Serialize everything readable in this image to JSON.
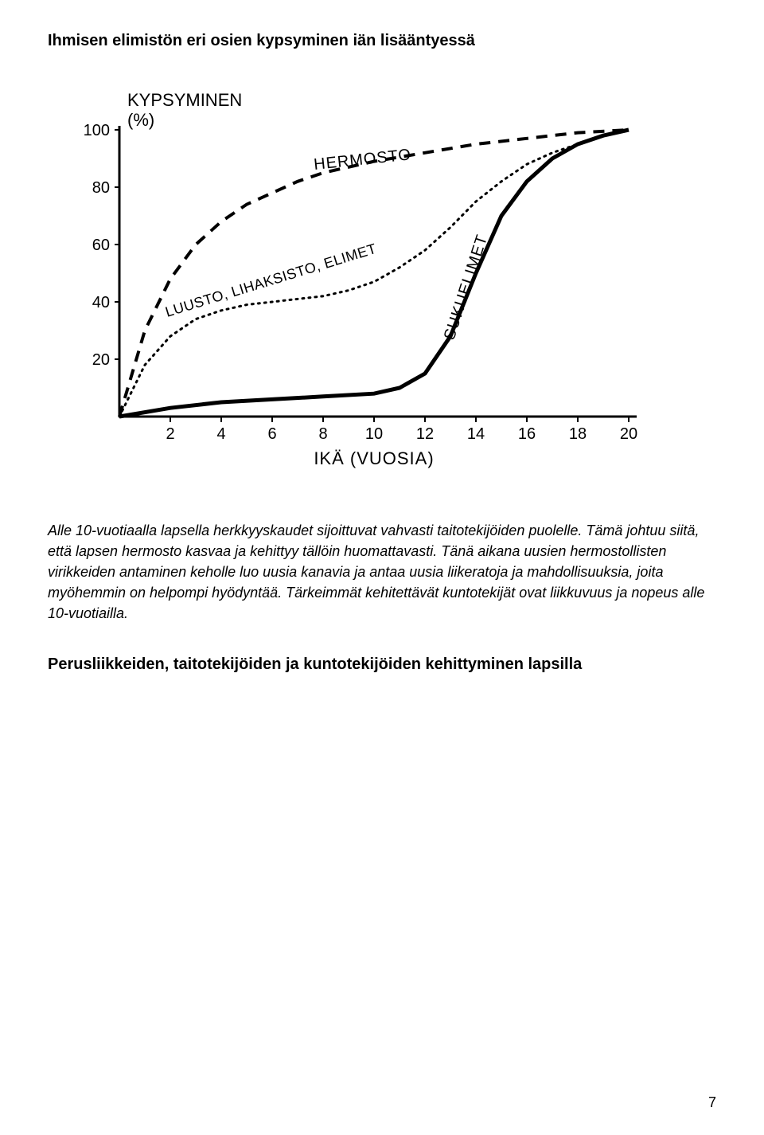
{
  "title": "Ihmisen elimistön eri osien kypsyminen iän lisääntyessä",
  "paragraph": "Alle 10-vuotiaalla lapsella herkkyyskaudet sijoittuvat vahvasti taitotekijöiden puolelle. Tämä johtuu siitä, että lapsen hermosto kasvaa ja kehittyy tällöin huomattavasti. Tänä aikana uusien hermostollisten virikkeiden antaminen keholle luo uusia kanavia ja antaa uusia liikeratoja ja mahdollisuuksia, joita myöhemmin on helpompi hyödyntää. Tärkeimmät kehitettävät kuntotekijät ovat liikkuvuus ja nopeus alle 10-vuotiailla.",
  "heading2": "Perusliikkeiden, taitotekijöiden ja kuntotekijöiden kehittyminen lapsilla",
  "page_number": "7",
  "chart": {
    "type": "line",
    "y_label_top": "KYPSYMINEN",
    "y_label_unit": "(%)",
    "x_label": "IKÄ  (VUOSIA)",
    "y_ticks": [
      "20",
      "40",
      "60",
      "80",
      "100"
    ],
    "x_ticks": [
      "2",
      "4",
      "6",
      "8",
      "10",
      "12",
      "14",
      "16",
      "18",
      "20"
    ],
    "series_hermosto_label": "HERMOSTO",
    "series_luusto_label": "LUUSTO, LIHAKSISTO, ELIMET",
    "series_sukuelimet_label": "SUKUELIMET",
    "colors": {
      "axis": "#000000",
      "line": "#000000",
      "background": "#ffffff",
      "text": "#000000"
    },
    "font": {
      "axis_tick_pt": 20,
      "axis_label_pt": 22,
      "series_label_pt": 20
    },
    "xlim": [
      0,
      20
    ],
    "ylim": [
      0,
      100
    ],
    "stroke_width": {
      "hermosto": 4,
      "luusto": 3,
      "sukuelimet": 5,
      "axis": 3
    },
    "hermosto_points": [
      [
        0,
        0
      ],
      [
        1,
        30
      ],
      [
        2,
        48
      ],
      [
        3,
        60
      ],
      [
        4,
        68
      ],
      [
        5,
        74
      ],
      [
        6,
        78
      ],
      [
        7,
        82
      ],
      [
        8,
        85
      ],
      [
        9,
        87
      ],
      [
        10,
        89
      ],
      [
        12,
        92
      ],
      [
        14,
        95
      ],
      [
        16,
        97
      ],
      [
        18,
        99
      ],
      [
        20,
        100
      ]
    ],
    "luusto_points": [
      [
        0,
        0
      ],
      [
        1,
        18
      ],
      [
        2,
        28
      ],
      [
        3,
        34
      ],
      [
        4,
        37
      ],
      [
        5,
        39
      ],
      [
        6,
        40
      ],
      [
        7,
        41
      ],
      [
        8,
        42
      ],
      [
        9,
        44
      ],
      [
        10,
        47
      ],
      [
        11,
        52
      ],
      [
        12,
        58
      ],
      [
        13,
        66
      ],
      [
        14,
        75
      ],
      [
        15,
        82
      ],
      [
        16,
        88
      ],
      [
        17,
        92
      ],
      [
        18,
        95
      ],
      [
        19,
        98
      ],
      [
        20,
        100
      ]
    ],
    "sukuelimet_points": [
      [
        0,
        0
      ],
      [
        2,
        3
      ],
      [
        4,
        5
      ],
      [
        6,
        6
      ],
      [
        8,
        7
      ],
      [
        10,
        8
      ],
      [
        11,
        10
      ],
      [
        12,
        15
      ],
      [
        13,
        28
      ],
      [
        14,
        50
      ],
      [
        15,
        70
      ],
      [
        16,
        82
      ],
      [
        17,
        90
      ],
      [
        18,
        95
      ],
      [
        19,
        98
      ],
      [
        20,
        100
      ]
    ]
  }
}
